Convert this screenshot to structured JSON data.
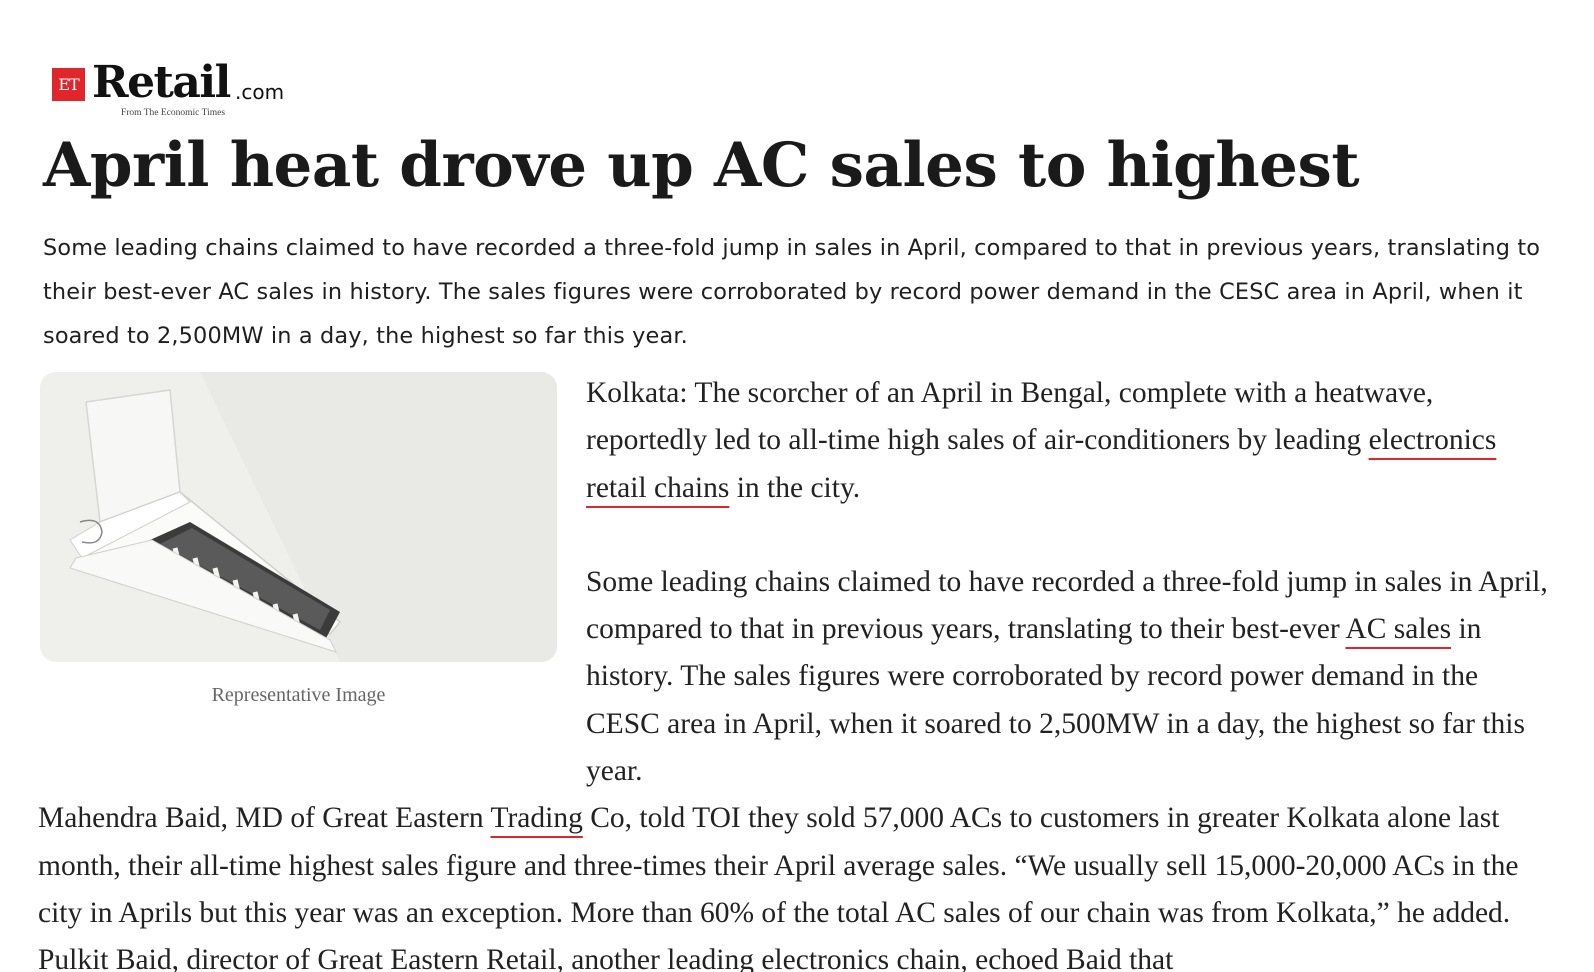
{
  "logo": {
    "badge": "ET",
    "word": "Retail",
    "suffix": ".com",
    "tagline": "From The Economic Times"
  },
  "article": {
    "headline": "April heat drove up AC sales to highest",
    "summary": "Some leading chains claimed to have recorded a three-fold jump in sales in April, compared to that in previous years, translating to their best-ever AC sales in history. The sales figures were corroborated by record power demand in the CESC area in April, when it soared to 2,500MW in a day, the highest so far this year.",
    "image_caption": "Representative Image",
    "p1": {
      "t1": "Kolkata: The scorcher of an April in Bengal, complete with a heatwave, reportedly led to all-time high sales of air-conditioners by leading ",
      "k1": "electronics",
      "k2": "retail chains",
      "t2": " in the city."
    },
    "p2": {
      "t1": "Some leading chains claimed to have recorded a three-fold jump in sales in April, compared to that in previous years, translating to their best-ever ",
      "k1": "AC sales",
      "t2": " in history. The sales figures were corroborated by record power demand in the CESC area in April, when it soared to 2,500MW in a day, the highest so far this year."
    },
    "p3": {
      "t1": "Mahendra Baid, MD of Great Eastern ",
      "k1": "Trading",
      "t2": " Co, told TOI they sold 57,000 ACs to customers in greater Kolkata alone last month, their all-time highest sales figure and three-times their April average sales. “We usually sell 15,000-20,000 ACs in the city in Aprils but this year was an exception. More than 60% of the total AC sales of our chain was from Kolkata,” he added. Pulkit Baid, director of Great Eastern Retail, another leading electronics chain, echoed Baid that"
    }
  }
}
